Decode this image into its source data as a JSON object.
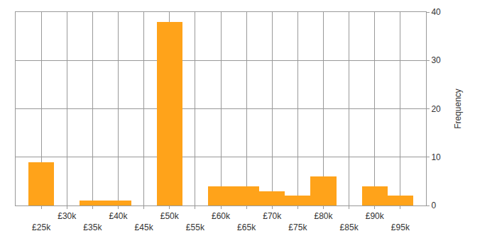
{
  "chart_data": {
    "type": "histogram",
    "bins": [
      22500,
      27500,
      32500,
      37500,
      42500,
      47500,
      52500,
      57500,
      62500,
      67500,
      72500,
      77500,
      82500,
      87500,
      92500,
      97500
    ],
    "values": [
      9,
      0,
      1,
      1,
      0,
      38,
      0,
      4,
      4,
      3,
      2,
      6,
      0,
      4,
      2
    ],
    "color": "#ffa31a",
    "ylabel": "Frequency",
    "xlim": [
      20000,
      100000
    ],
    "xticks": [
      {
        "value": 25000,
        "label": "£25k"
      },
      {
        "value": 30000,
        "label": "£30k"
      },
      {
        "value": 35000,
        "label": "£35k"
      },
      {
        "value": 40000,
        "label": "£40k"
      },
      {
        "value": 45000,
        "label": "£45k"
      },
      {
        "value": 50000,
        "label": "£50k"
      },
      {
        "value": 55000,
        "label": "£55k"
      },
      {
        "value": 60000,
        "label": "£60k"
      },
      {
        "value": 65000,
        "label": "£65k"
      },
      {
        "value": 70000,
        "label": "£70k"
      },
      {
        "value": 75000,
        "label": "£75k"
      },
      {
        "value": 80000,
        "label": "£80k"
      },
      {
        "value": 85000,
        "label": "£85k"
      },
      {
        "value": 90000,
        "label": "£90k"
      },
      {
        "value": 95000,
        "label": "£95k"
      }
    ],
    "ylim": [
      0,
      40
    ],
    "yticks": [
      0,
      10,
      20,
      30,
      40
    ],
    "grid": true
  }
}
